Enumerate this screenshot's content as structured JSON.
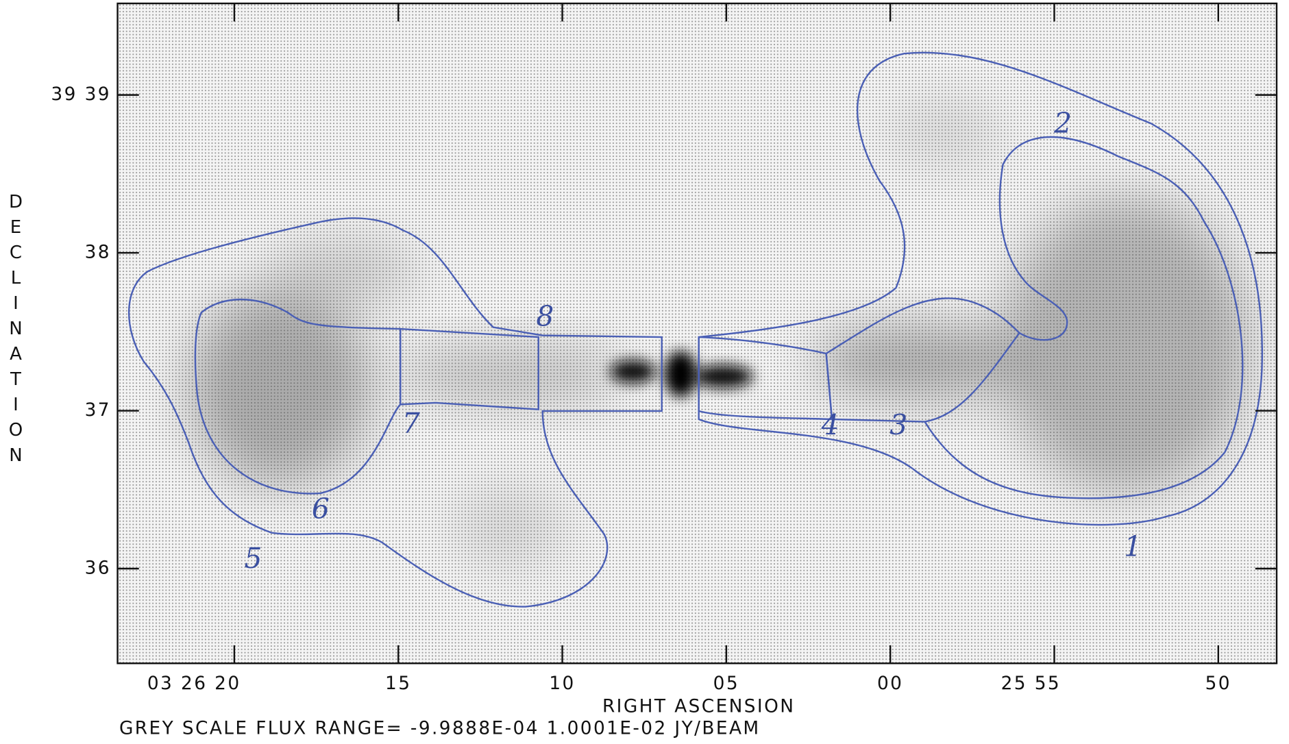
{
  "x_axis": {
    "label": "RIGHT ASCENSION",
    "lim": [
      83.56,
      48.22
    ],
    "ticks": [
      {
        "value": 80,
        "label": "03 26 20"
      },
      {
        "value": 75,
        "label": "15"
      },
      {
        "value": 70,
        "label": "10"
      },
      {
        "value": 65,
        "label": "05"
      },
      {
        "value": 60,
        "label": "00"
      },
      {
        "value": 55,
        "label": "25 55"
      },
      {
        "value": 50,
        "label": "50"
      }
    ]
  },
  "y_axis": {
    "label": "DECLINATION",
    "lim": [
      35.4,
      39.58
    ],
    "ticks": [
      {
        "value": 39,
        "label": "39 39"
      },
      38,
      37,
      36
    ]
  },
  "caption": "GREY SCALE FLUX RANGE= -9.9888E-04  1.0001E-02 JY/BEAM",
  "regions": [
    "1",
    "2",
    "3",
    "4",
    "5",
    "6",
    "7",
    "8"
  ]
}
